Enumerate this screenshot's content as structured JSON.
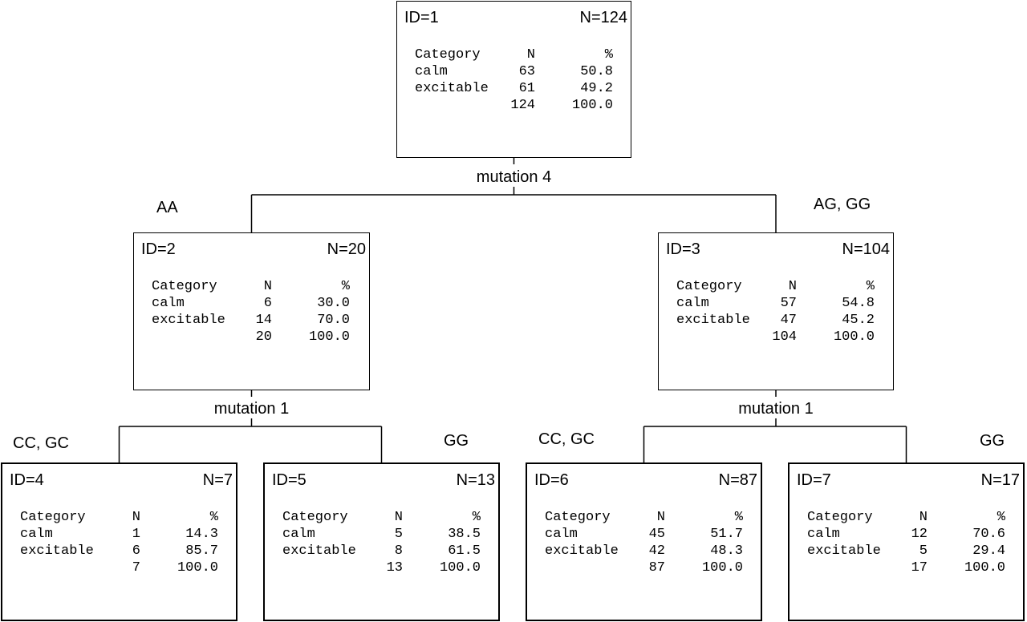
{
  "header": {
    "category": "Category",
    "n": "N",
    "pct": "%"
  },
  "nodes": [
    {
      "id": "ID=1",
      "n": "N=124",
      "rows": [
        {
          "cat": "calm",
          "n": "63",
          "pct": "50.8"
        },
        {
          "cat": "excitable",
          "n": "61",
          "pct": "49.2"
        },
        {
          "cat": "",
          "n": "124",
          "pct": "100.0"
        }
      ]
    },
    {
      "id": "ID=2",
      "n": "N=20",
      "rows": [
        {
          "cat": "calm",
          "n": "6",
          "pct": "30.0"
        },
        {
          "cat": "excitable",
          "n": "14",
          "pct": "70.0"
        },
        {
          "cat": "",
          "n": "20",
          "pct": "100.0"
        }
      ]
    },
    {
      "id": "ID=3",
      "n": "N=104",
      "rows": [
        {
          "cat": "calm",
          "n": "57",
          "pct": "54.8"
        },
        {
          "cat": "excitable",
          "n": "47",
          "pct": "45.2"
        },
        {
          "cat": "",
          "n": "104",
          "pct": "100.0"
        }
      ]
    },
    {
      "id": "ID=4",
      "n": "N=7",
      "rows": [
        {
          "cat": "calm",
          "n": "1",
          "pct": "14.3"
        },
        {
          "cat": "excitable",
          "n": "6",
          "pct": "85.7"
        },
        {
          "cat": "",
          "n": "7",
          "pct": "100.0"
        }
      ]
    },
    {
      "id": "ID=5",
      "n": "N=13",
      "rows": [
        {
          "cat": "calm",
          "n": "5",
          "pct": "38.5"
        },
        {
          "cat": "excitable",
          "n": "8",
          "pct": "61.5"
        },
        {
          "cat": "",
          "n": "13",
          "pct": "100.0"
        }
      ]
    },
    {
      "id": "ID=6",
      "n": "N=87",
      "rows": [
        {
          "cat": "calm",
          "n": "45",
          "pct": "51.7"
        },
        {
          "cat": "excitable",
          "n": "42",
          "pct": "48.3"
        },
        {
          "cat": "",
          "n": "87",
          "pct": "100.0"
        }
      ]
    },
    {
      "id": "ID=7",
      "n": "N=17",
      "rows": [
        {
          "cat": "calm",
          "n": "12",
          "pct": "70.6"
        },
        {
          "cat": "excitable",
          "n": "5",
          "pct": "29.4"
        },
        {
          "cat": "",
          "n": "17",
          "pct": "100.0"
        }
      ]
    }
  ],
  "splits": [
    {
      "variable": "mutation 4",
      "left": "AA",
      "right": "AG, GG"
    },
    {
      "variable": "mutation 1",
      "left": "CC, GC",
      "right": "GG"
    },
    {
      "variable": "mutation 1",
      "left": "CC, GC",
      "right": "GG"
    }
  ]
}
